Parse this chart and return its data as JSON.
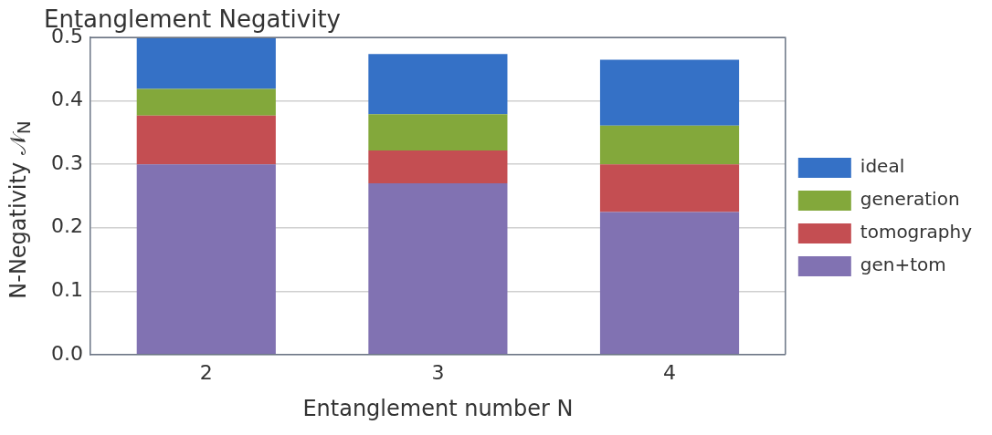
{
  "chart_data": {
    "type": "bar",
    "title": "Entanglement Negativity",
    "xlabel": "Entanglement number N",
    "ylabel": "N-Negativity 𝒩$_{N}$",
    "categories": [
      "2",
      "3",
      "4"
    ],
    "stacked": true,
    "series": [
      {
        "name": "gen+tom",
        "color": "#8172b2",
        "values": [
          0.3,
          0.27,
          0.225
        ]
      },
      {
        "name": "tomography",
        "color": "#c44e52",
        "values": [
          0.077,
          0.052,
          0.075
        ]
      },
      {
        "name": "generation",
        "color": "#83a83b",
        "values": [
          0.042,
          0.057,
          0.061
        ]
      },
      {
        "name": "ideal",
        "color": "#3571c6",
        "values": [
          0.081,
          0.095,
          0.104
        ]
      }
    ],
    "ylim": [
      0,
      0.5
    ],
    "yticks": [
      {
        "value": 0,
        "label": "0.0"
      },
      0.1,
      0.2,
      0.3,
      0.4,
      0.5
    ],
    "grid": "y",
    "legend": "right"
  }
}
